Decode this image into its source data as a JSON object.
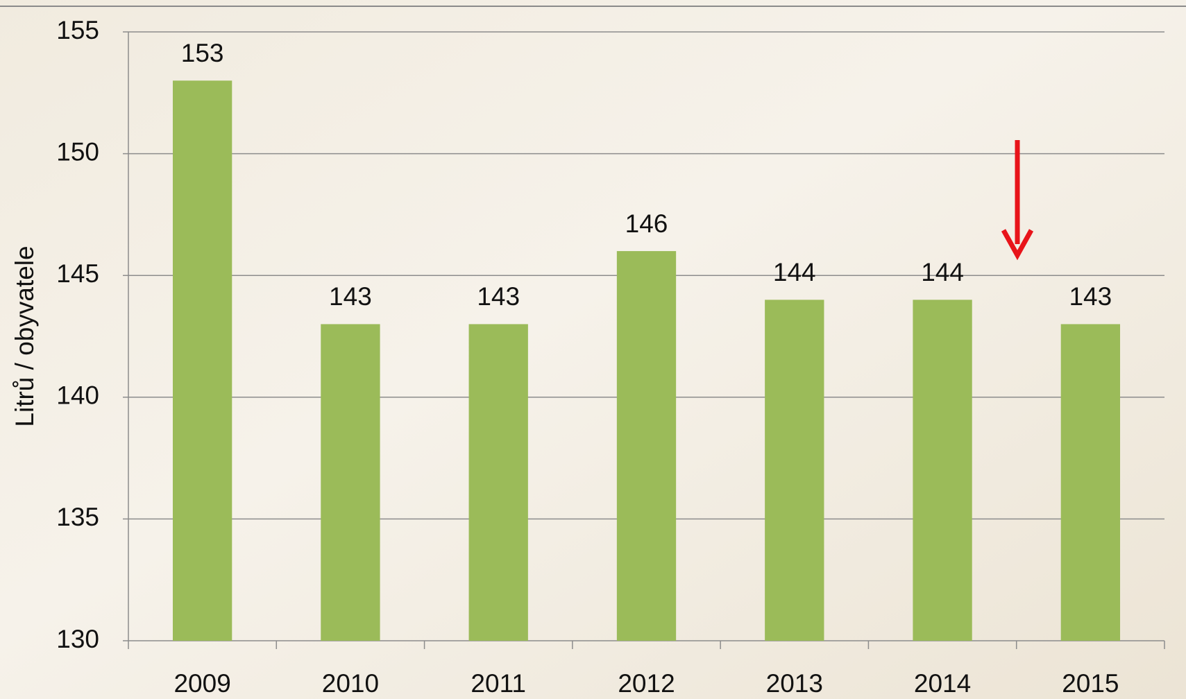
{
  "chart_data": {
    "type": "bar",
    "y_label": "Litrů / obyvatele",
    "categories": [
      "2009",
      "2010",
      "2011",
      "2012",
      "2013",
      "2014",
      "2015"
    ],
    "values": [
      153,
      143,
      143,
      146,
      144,
      144,
      143
    ],
    "color": "#9bbb59",
    "ylim": [
      130,
      155
    ],
    "yticks": [
      130,
      135,
      140,
      145,
      150,
      155
    ],
    "grid": true
  }
}
